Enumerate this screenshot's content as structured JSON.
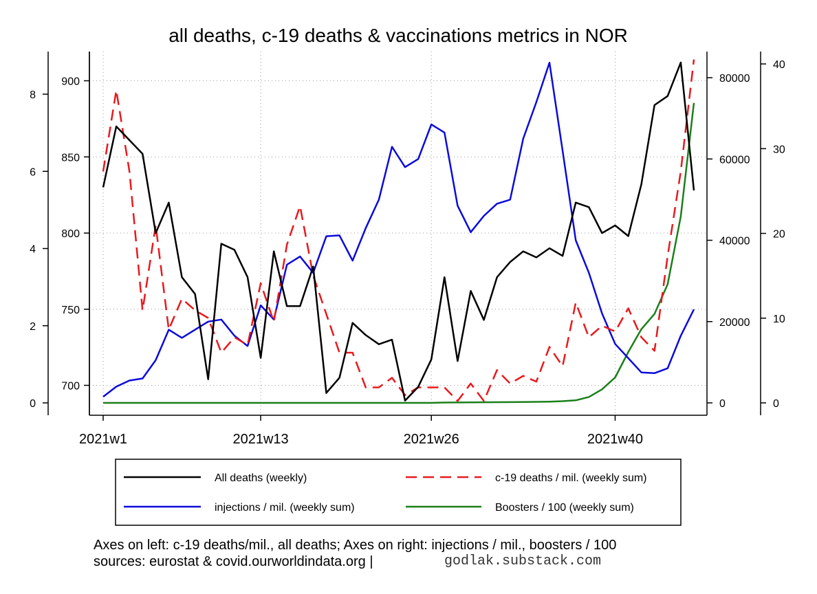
{
  "chart_data": {
    "type": "line",
    "title": "all deaths, c-19 deaths & vaccinations metrics in NOR",
    "x_tick_labels": [
      "2021w1",
      "2021w13",
      "2021w26",
      "2021w40"
    ],
    "x_tick_weeks": [
      1,
      13,
      26,
      40
    ],
    "x_range": [
      1,
      46
    ],
    "grid": true,
    "legend_position": "bottom",
    "axes": {
      "left_deaths": {
        "ticks": [
          700,
          750,
          800,
          850,
          900
        ],
        "range": [
          689,
          911
        ]
      },
      "left_c19": {
        "ticks": [
          0,
          2,
          4,
          6,
          8
        ],
        "range": [
          0,
          8.9
        ]
      },
      "right_injections": {
        "ticks": [
          0,
          20000,
          40000,
          60000,
          80000
        ],
        "range": [
          0,
          83700
        ]
      },
      "right_boosters": {
        "ticks": [
          0,
          10,
          20,
          30,
          40
        ],
        "range": [
          0,
          40
        ]
      }
    },
    "series": [
      {
        "name": "All deaths (weekly)",
        "axis": "left_deaths",
        "color": "#000000",
        "dash": "none",
        "x": [
          1,
          2,
          3,
          4,
          5,
          6,
          7,
          8,
          9,
          10,
          11,
          12,
          13,
          14,
          15,
          16,
          17,
          18,
          19,
          20,
          21,
          22,
          23,
          24,
          25,
          26,
          27,
          28,
          29,
          30,
          31,
          32,
          33,
          34,
          35,
          36,
          37,
          38,
          39,
          40,
          41,
          42,
          43,
          44,
          45,
          46
        ],
        "y": [
          830,
          870,
          861,
          852,
          800,
          820,
          771,
          760,
          704,
          793,
          789,
          771,
          718,
          788,
          752,
          752,
          778,
          695,
          705,
          741,
          733,
          727,
          730,
          690,
          699,
          717,
          771,
          716,
          762,
          743,
          771,
          781,
          788,
          784,
          790,
          785,
          820,
          817,
          800,
          805,
          798,
          832,
          884,
          890,
          912,
          828
        ]
      },
      {
        "name": "c-19 deaths / mil. (weekly sum)",
        "axis": "left_c19",
        "color": "#e8191c",
        "dash": "16,9",
        "x": [
          1,
          2,
          3,
          4,
          5,
          6,
          7,
          8,
          9,
          10,
          11,
          12,
          13,
          14,
          15,
          16,
          17,
          18,
          19,
          20,
          21,
          22,
          23,
          24,
          25,
          26,
          27,
          28,
          29,
          30,
          31,
          32,
          33,
          34,
          35,
          36,
          37,
          38,
          39,
          40,
          41,
          42,
          43,
          44,
          45,
          46
        ],
        "y": [
          6.0,
          8.1,
          6.0,
          2.4,
          4.6,
          1.9,
          2.7,
          2.4,
          2.2,
          1.3,
          1.7,
          1.5,
          3.1,
          2.1,
          4.1,
          5.1,
          3.3,
          2.3,
          1.3,
          1.3,
          0.4,
          0.4,
          0.65,
          0.2,
          0.4,
          0.4,
          0.4,
          0.05,
          0.5,
          0.05,
          0.85,
          0.5,
          0.7,
          0.55,
          1.45,
          0.95,
          2.6,
          1.7,
          2.0,
          1.85,
          2.45,
          1.7,
          1.35,
          3.8,
          6.0,
          8.9
        ]
      },
      {
        "name": "injections / mil. (weekly sum)",
        "axis": "right_injections",
        "color": "#0a0adc",
        "dash": "none",
        "x": [
          1,
          2,
          3,
          4,
          5,
          6,
          7,
          8,
          9,
          10,
          11,
          12,
          13,
          14,
          15,
          16,
          17,
          18,
          19,
          20,
          21,
          22,
          23,
          24,
          25,
          26,
          27,
          28,
          29,
          30,
          31,
          32,
          33,
          34,
          35,
          36,
          37,
          38,
          39,
          40,
          41,
          42,
          43,
          44,
          45,
          46
        ],
        "y": [
          1500,
          4000,
          5500,
          6000,
          10500,
          18000,
          16000,
          18000,
          20000,
          20500,
          16500,
          14000,
          24000,
          20500,
          34000,
          36000,
          32000,
          41000,
          41200,
          35000,
          43000,
          50000,
          63000,
          58000,
          60000,
          68500,
          66500,
          48500,
          42000,
          46000,
          49000,
          50000,
          65000,
          74000,
          83700,
          62000,
          40000,
          32000,
          22000,
          14500,
          11000,
          7500,
          7300,
          8500,
          16500,
          23000
        ]
      },
      {
        "name": "Boosters / 100 (weekly sum)",
        "axis": "right_boosters",
        "color": "#1a7f1a",
        "dash": "none",
        "x": [
          1,
          2,
          3,
          4,
          5,
          6,
          7,
          8,
          9,
          10,
          11,
          12,
          13,
          14,
          15,
          16,
          17,
          18,
          19,
          20,
          21,
          22,
          23,
          24,
          25,
          26,
          27,
          28,
          29,
          30,
          31,
          32,
          33,
          34,
          35,
          36,
          37,
          38,
          39,
          40,
          41,
          42,
          43,
          44,
          45,
          46
        ],
        "y": [
          0,
          0,
          0,
          0,
          0,
          0,
          0,
          0,
          0,
          0,
          0,
          0,
          0,
          0,
          0,
          0,
          0,
          0,
          0,
          0,
          0,
          0,
          0,
          0,
          0,
          0,
          0.04,
          0.05,
          0.06,
          0.07,
          0.08,
          0.09,
          0.1,
          0.12,
          0.15,
          0.2,
          0.3,
          0.7,
          1.6,
          3.0,
          6.0,
          8.7,
          10.5,
          14,
          22,
          35.4
        ]
      }
    ],
    "legend": [
      {
        "label": "All deaths (weekly)",
        "color": "#000000",
        "dash": "none"
      },
      {
        "label": "c-19 deaths / mil. (weekly sum)",
        "color": "#e8191c",
        "dash": "16,9"
      },
      {
        "label": "injections / mil. (weekly sum)",
        "color": "#0a0adc",
        "dash": "none"
      },
      {
        "label": "Boosters / 100 (weekly sum)",
        "color": "#1a7f1a",
        "dash": "none"
      }
    ],
    "caption_line1": "Axes on left: c-19 deaths/mil., all deaths; Axes on right: injections / mil., boosters / 100",
    "caption_line2": "sources: eurostat & covid.ourworldindata.org |",
    "caption_credit": "godlak.substack.com"
  }
}
